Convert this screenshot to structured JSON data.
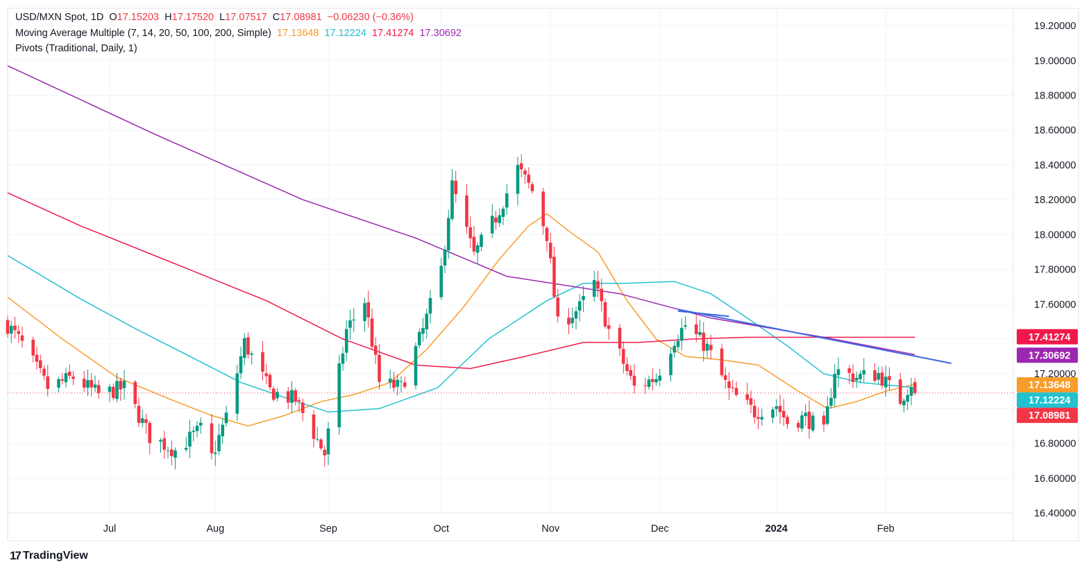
{
  "legend": {
    "symbol": "USD/MXN Spot, 1D",
    "o_label": "O",
    "o": "17.15203",
    "h_label": "H",
    "h": "17.17520",
    "l_label": "L",
    "l": "17.07517",
    "c_label": "C",
    "c": "17.08981",
    "change": "−0.06230 (−0.36%)",
    "ma_title": "Moving Average Multiple (7, 14, 20, 50, 100, 200, Simple)",
    "ma_values": [
      "17.13648",
      "17.12224",
      "17.41274",
      "17.30692"
    ],
    "pivots_title": "Pivots (Traditional, Daily, 1)"
  },
  "brand": {
    "mark": "17",
    "name": "TradingView"
  },
  "colors": {
    "up": "#089981",
    "down": "#f23645",
    "ma20": "#f89c2b",
    "ma50": "#22c1cf",
    "ma100": "#f0194b",
    "ma200": "#9c27b0",
    "trend": "#3f66e0"
  },
  "chart_data": {
    "type": "candlestick",
    "title": "USD/MXN Spot, 1D",
    "ylim": [
      16.4,
      19.3
    ],
    "y_ticks": [
      "19.20000",
      "19.00000",
      "18.80000",
      "18.60000",
      "18.40000",
      "18.20000",
      "18.00000",
      "17.80000",
      "17.60000",
      "17.40000",
      "17.20000",
      "17.00000",
      "16.80000",
      "16.60000",
      "16.40000"
    ],
    "x_ticks": [
      {
        "label": "Jul",
        "date": "2023-07-03"
      },
      {
        "label": "Aug",
        "date": "2023-08-01"
      },
      {
        "label": "Sep",
        "date": "2023-09-01"
      },
      {
        "label": "Oct",
        "date": "2023-10-02"
      },
      {
        "label": "Nov",
        "date": "2023-11-01"
      },
      {
        "label": "Dec",
        "date": "2023-12-01"
      },
      {
        "label": "2024",
        "date": "2024-01-02"
      },
      {
        "label": "Feb",
        "date": "2024-02-01"
      }
    ],
    "start_date": "2023-06-05",
    "end_date": "2024-02-09",
    "x_range": [
      "2023-06-05",
      "2024-03-07"
    ],
    "close_anchors": [
      [
        "2023-06-05",
        17.48
      ],
      [
        "2023-06-09",
        17.37
      ],
      [
        "2023-06-16",
        17.12
      ],
      [
        "2023-06-23",
        17.18
      ],
      [
        "2023-06-30",
        17.08
      ],
      [
        "2023-07-07",
        17.12
      ],
      [
        "2023-07-14",
        16.84
      ],
      [
        "2023-07-21",
        16.76
      ],
      [
        "2023-07-28",
        16.88
      ],
      [
        "2023-07-31",
        16.72
      ],
      [
        "2023-08-04",
        16.95
      ],
      [
        "2023-08-09",
        17.38
      ],
      [
        "2023-08-16",
        17.1
      ],
      [
        "2023-08-23",
        17.05
      ],
      [
        "2023-08-29",
        16.82
      ],
      [
        "2023-08-31",
        16.74
      ],
      [
        "2023-09-06",
        17.45
      ],
      [
        "2023-09-11",
        17.62
      ],
      [
        "2023-09-15",
        17.15
      ],
      [
        "2023-09-21",
        17.12
      ],
      [
        "2023-09-27",
        17.45
      ],
      [
        "2023-10-02",
        17.8
      ],
      [
        "2023-10-05",
        18.28
      ],
      [
        "2023-10-11",
        17.88
      ],
      [
        "2023-10-17",
        18.1
      ],
      [
        "2023-10-23",
        18.38
      ],
      [
        "2023-10-27",
        18.25
      ],
      [
        "2023-10-31",
        18.0
      ],
      [
        "2023-11-03",
        17.48
      ],
      [
        "2023-11-09",
        17.58
      ],
      [
        "2023-11-13",
        17.72
      ],
      [
        "2023-11-17",
        17.45
      ],
      [
        "2023-11-24",
        17.12
      ],
      [
        "2023-11-30",
        17.18
      ],
      [
        "2023-12-05",
        17.4
      ],
      [
        "2023-12-08",
        17.48
      ],
      [
        "2023-12-14",
        17.35
      ],
      [
        "2023-12-20",
        17.1
      ],
      [
        "2023-12-27",
        16.98
      ],
      [
        "2024-01-02",
        17.02
      ],
      [
        "2024-01-05",
        16.92
      ],
      [
        "2024-01-10",
        16.95
      ],
      [
        "2024-01-15",
        16.86
      ],
      [
        "2024-01-18",
        17.22
      ],
      [
        "2024-01-24",
        17.18
      ],
      [
        "2024-01-30",
        17.2
      ],
      [
        "2024-02-05",
        17.05
      ],
      [
        "2024-02-08",
        17.15
      ],
      [
        "2024-02-09",
        17.09
      ]
    ],
    "series": [
      {
        "name": "MA 20",
        "color": "#f89c2b",
        "points": [
          [
            "2023-06-05",
            17.64
          ],
          [
            "2023-06-20",
            17.4
          ],
          [
            "2023-07-05",
            17.18
          ],
          [
            "2023-07-20",
            17.05
          ],
          [
            "2023-07-31",
            16.96
          ],
          [
            "2023-08-10",
            16.9
          ],
          [
            "2023-08-20",
            16.96
          ],
          [
            "2023-08-30",
            17.04
          ],
          [
            "2023-09-08",
            17.08
          ],
          [
            "2023-09-18",
            17.15
          ],
          [
            "2023-09-28",
            17.34
          ],
          [
            "2023-10-08",
            17.58
          ],
          [
            "2023-10-18",
            17.86
          ],
          [
            "2023-10-26",
            18.05
          ],
          [
            "2023-10-31",
            18.12
          ],
          [
            "2023-11-06",
            18.02
          ],
          [
            "2023-11-14",
            17.9
          ],
          [
            "2023-11-22",
            17.62
          ],
          [
            "2023-11-30",
            17.4
          ],
          [
            "2023-12-08",
            17.3
          ],
          [
            "2023-12-18",
            17.28
          ],
          [
            "2023-12-28",
            17.25
          ],
          [
            "2024-01-08",
            17.1
          ],
          [
            "2024-01-16",
            17.0
          ],
          [
            "2024-01-24",
            17.04
          ],
          [
            "2024-02-01",
            17.1
          ],
          [
            "2024-02-09",
            17.14
          ]
        ]
      },
      {
        "name": "MA 50",
        "color": "#22c1cf",
        "points": [
          [
            "2023-06-05",
            17.88
          ],
          [
            "2023-06-25",
            17.63
          ],
          [
            "2023-07-10",
            17.46
          ],
          [
            "2023-07-25",
            17.3
          ],
          [
            "2023-08-08",
            17.15
          ],
          [
            "2023-08-22",
            17.05
          ],
          [
            "2023-09-01",
            16.98
          ],
          [
            "2023-09-15",
            17.0
          ],
          [
            "2023-10-01",
            17.12
          ],
          [
            "2023-10-15",
            17.4
          ],
          [
            "2023-10-31",
            17.62
          ],
          [
            "2023-11-10",
            17.72
          ],
          [
            "2023-11-22",
            17.72
          ],
          [
            "2023-12-05",
            17.73
          ],
          [
            "2023-12-15",
            17.66
          ],
          [
            "2023-12-25",
            17.52
          ],
          [
            "2024-01-05",
            17.36
          ],
          [
            "2024-01-15",
            17.2
          ],
          [
            "2024-01-25",
            17.15
          ],
          [
            "2024-02-09",
            17.12
          ]
        ]
      },
      {
        "name": "MA 100",
        "color": "#f0194b",
        "points": [
          [
            "2023-06-05",
            18.24
          ],
          [
            "2023-06-25",
            18.05
          ],
          [
            "2023-07-20",
            17.84
          ],
          [
            "2023-08-15",
            17.62
          ],
          [
            "2023-09-05",
            17.4
          ],
          [
            "2023-09-25",
            17.25
          ],
          [
            "2023-10-10",
            17.23
          ],
          [
            "2023-10-25",
            17.3
          ],
          [
            "2023-11-10",
            17.38
          ],
          [
            "2023-11-25",
            17.38
          ],
          [
            "2023-12-10",
            17.4
          ],
          [
            "2023-12-25",
            17.41
          ],
          [
            "2024-01-15",
            17.41
          ],
          [
            "2024-02-09",
            17.41
          ]
        ]
      },
      {
        "name": "MA 200",
        "color": "#9c27b0",
        "points": [
          [
            "2023-06-05",
            18.97
          ],
          [
            "2023-07-15",
            18.58
          ],
          [
            "2023-08-25",
            18.2
          ],
          [
            "2023-09-25",
            17.98
          ],
          [
            "2023-10-20",
            17.76
          ],
          [
            "2023-11-20",
            17.66
          ],
          [
            "2023-12-15",
            17.52
          ],
          [
            "2024-01-15",
            17.41
          ],
          [
            "2024-02-09",
            17.31
          ]
        ]
      }
    ],
    "trendlines": [
      {
        "color": "#3f66e0",
        "from": [
          "2023-12-06",
          17.57
        ],
        "to": [
          "2024-02-19",
          17.26
        ]
      },
      {
        "color": "#3f66e0",
        "from": [
          "2023-12-06",
          17.56
        ],
        "to": [
          "2023-12-20",
          17.53
        ]
      }
    ],
    "last_price": 17.08981,
    "price_labels": [
      {
        "value": 17.41274,
        "text": "17.41274",
        "color": "#f0194b"
      },
      {
        "value": 17.30692,
        "text": "17.30692",
        "color": "#9c27b0"
      },
      {
        "value": 17.13648,
        "text": "17.13648",
        "color": "#f89c2b"
      },
      {
        "value": 17.12224,
        "text": "17.12224",
        "color": "#22c1cf"
      },
      {
        "value": 17.08981,
        "text": "17.08981",
        "color": "#f23645"
      }
    ]
  }
}
